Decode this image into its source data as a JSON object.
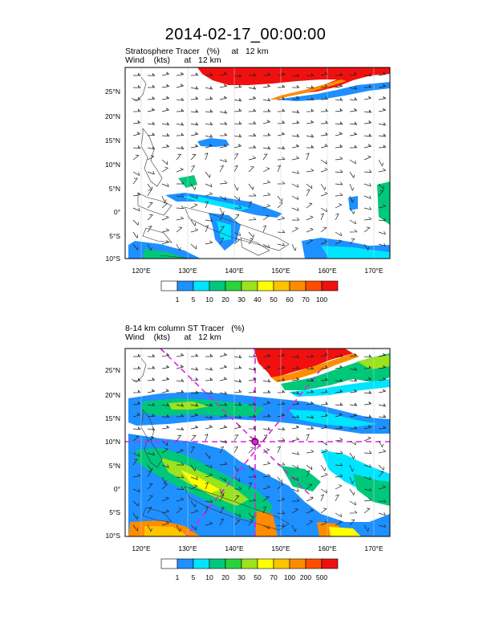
{
  "title": "2014-02-17_00:00:00",
  "panels": [
    {
      "line1": "Stratosphere Tracer   (%)     at   12 km",
      "line2": "Wind    (kts)      at   12 km",
      "lat_labels": [
        "25°N",
        "20°N",
        "15°N",
        "10°N",
        "5°N",
        "0°",
        "5°S",
        "10°S"
      ],
      "lon_labels": [
        "120°E",
        "130°E",
        "140°E",
        "150°E",
        "160°E",
        "170°E"
      ],
      "colorbar": {
        "labels": [
          "1",
          "5",
          "10",
          "20",
          "30",
          "40",
          "50",
          "60",
          "70",
          "100"
        ],
        "colors": [
          "#ffffff",
          "#1e90ff",
          "#00e5ff",
          "#00c87a",
          "#29d43a",
          "#9be31f",
          "#ffff00",
          "#ffc400",
          "#ff8c00",
          "#ff4d00",
          "#f01010"
        ]
      }
    },
    {
      "line1": "8-14 km column ST Tracer   (%)",
      "line2": "Wind    (kts)      at   12 km",
      "lat_labels": [
        "25°N",
        "20°N",
        "15°N",
        "10°N",
        "5°N",
        "0°",
        "5°S",
        "10°S"
      ],
      "lon_labels": [
        "120°E",
        "130°E",
        "140°E",
        "150°E",
        "160°E",
        "170°E"
      ],
      "colorbar": {
        "labels": [
          "1",
          "5",
          "10",
          "20",
          "30",
          "50",
          "70",
          "100",
          "200",
          "500"
        ],
        "colors": [
          "#ffffff",
          "#1e90ff",
          "#00e5ff",
          "#00c87a",
          "#29d43a",
          "#9be31f",
          "#ffff00",
          "#ffc400",
          "#ff8c00",
          "#ff4d00",
          "#f01010"
        ]
      }
    }
  ],
  "marker_color": "#e020e0"
}
